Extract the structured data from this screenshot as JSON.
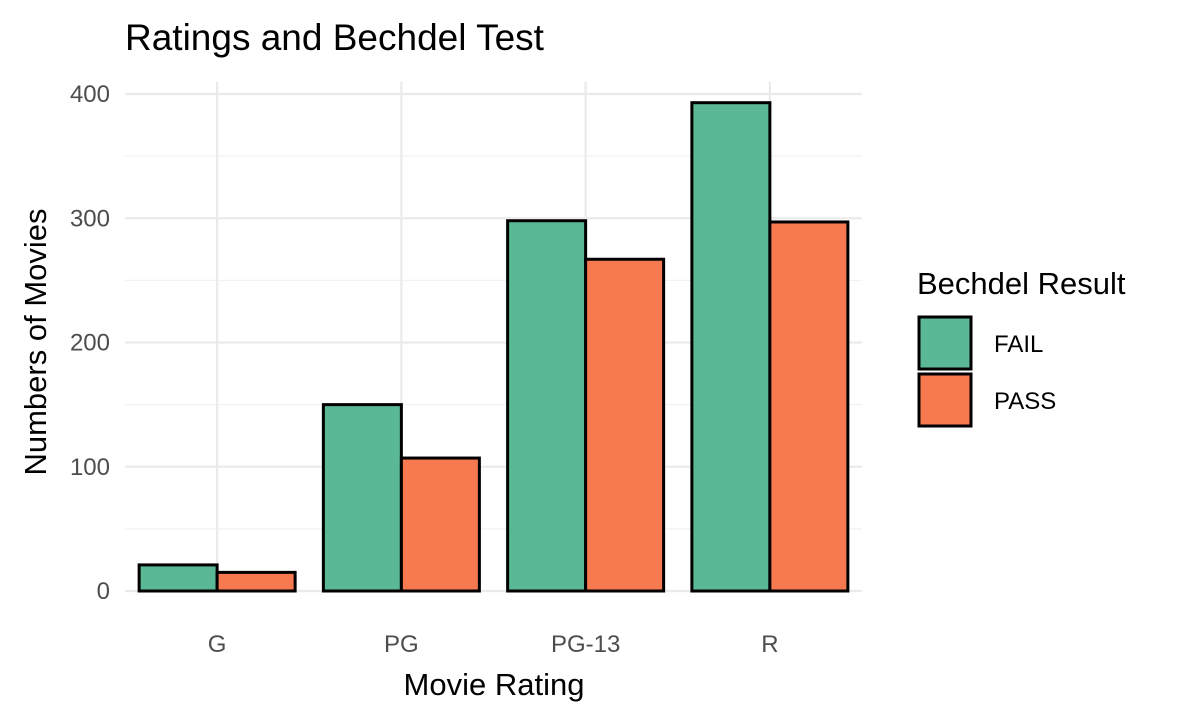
{
  "chart_data": {
    "type": "bar",
    "title": "Ratings and Bechdel Test",
    "xlabel": "Movie Rating",
    "ylabel": "Numbers of Movies",
    "categories": [
      "G",
      "PG",
      "PG-13",
      "R"
    ],
    "series": [
      {
        "name": "FAIL",
        "values": [
          21,
          150,
          298,
          393
        ],
        "color": "#5ab994"
      },
      {
        "name": "PASS",
        "values": [
          15,
          107,
          267,
          297
        ],
        "color": "#f7794f"
      }
    ],
    "ylim": [
      0,
      410
    ],
    "yticks": [
      0,
      100,
      200,
      300,
      400
    ],
    "grid": true,
    "legend": {
      "title": "Bechdel Result",
      "position": "right"
    }
  }
}
